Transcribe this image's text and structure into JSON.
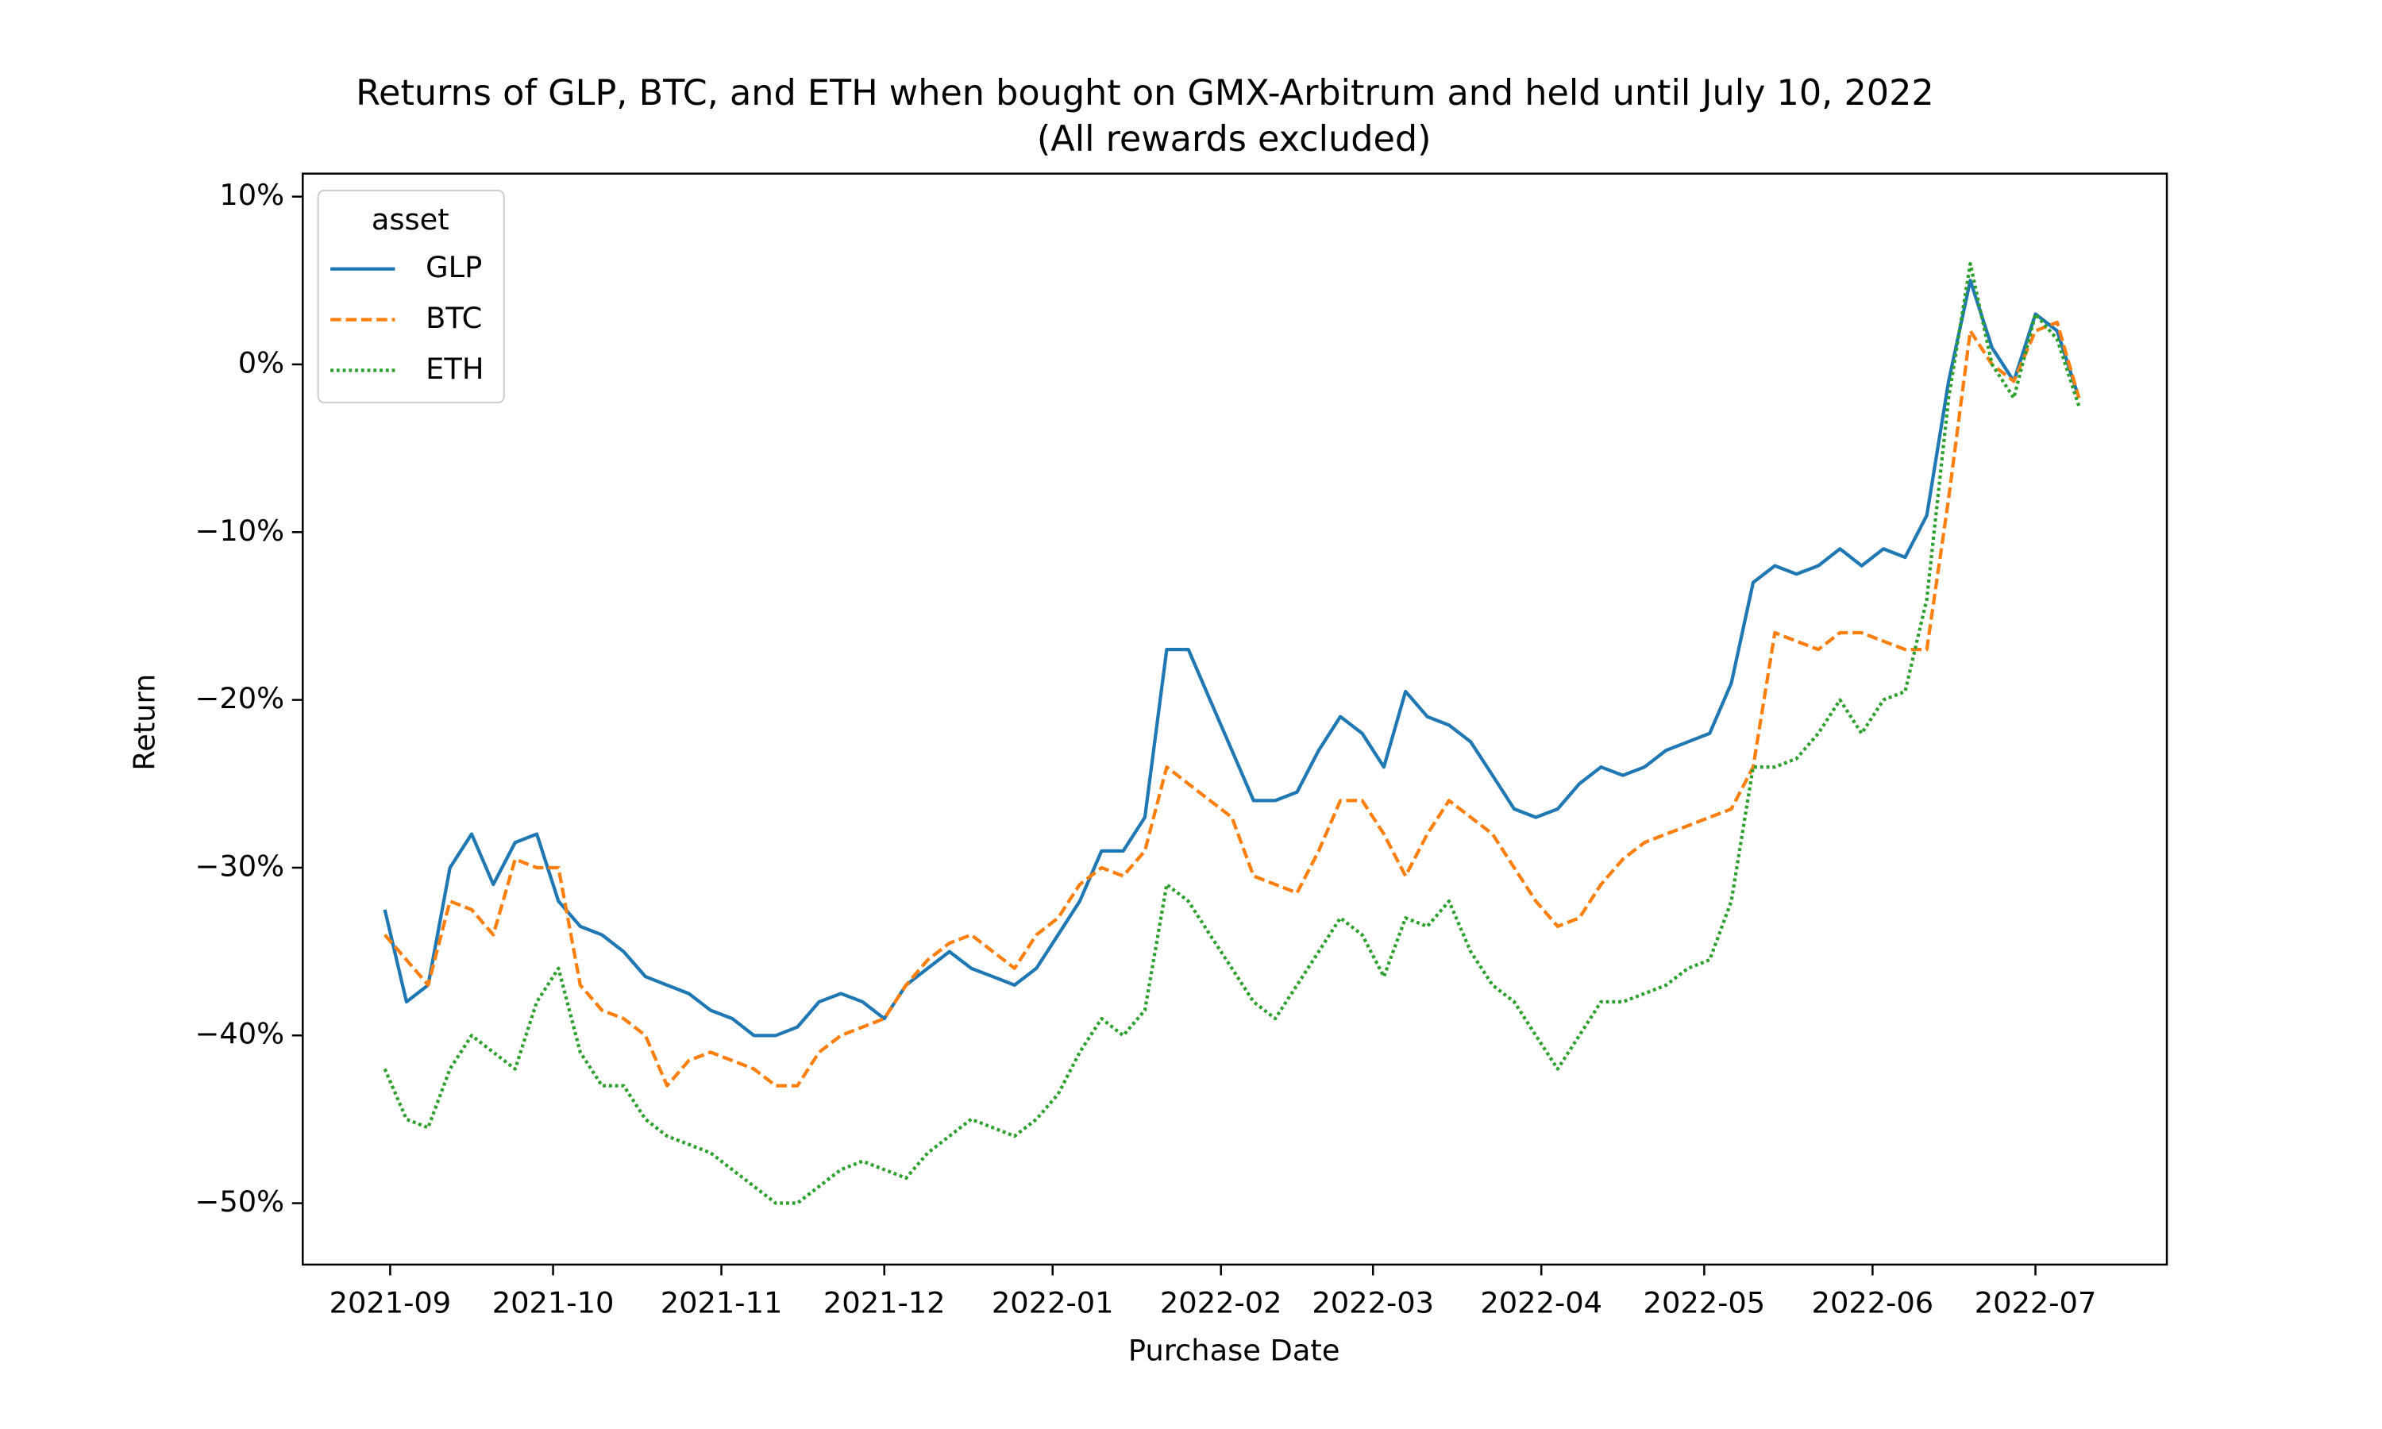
{
  "chart_data": {
    "type": "line",
    "title": "Returns of GLP, BTC, and ETH when bought on GMX-Arbitrum and held until July 10, 2022",
    "subtitle": "(All rewards excluded)",
    "xlabel": "Purchase Date",
    "ylabel": "Return",
    "legend_title": "asset",
    "legend_loc": "upper left",
    "x": [
      -1,
      3,
      7,
      11,
      15,
      19,
      23,
      27,
      31,
      35,
      39,
      43,
      47,
      51,
      55,
      59,
      63,
      67,
      71,
      75,
      79,
      83,
      87,
      91,
      95,
      99,
      103,
      107,
      111,
      115,
      119,
      123,
      127,
      131,
      135,
      139,
      143,
      147,
      151,
      155,
      159,
      163,
      167,
      171,
      175,
      179,
      183,
      187,
      191,
      195,
      199,
      203,
      207,
      211,
      215,
      219,
      223,
      227,
      231,
      235,
      239,
      243,
      247,
      251,
      255,
      259,
      263,
      267,
      271,
      275,
      279,
      283,
      287,
      291,
      295,
      299,
      303,
      307,
      311
    ],
    "xlim": [
      -16.1,
      327.2
    ],
    "xticks": [
      {
        "value": 0,
        "label": "2021-09"
      },
      {
        "value": 30,
        "label": "2021-10"
      },
      {
        "value": 61,
        "label": "2021-11"
      },
      {
        "value": 91,
        "label": "2021-12"
      },
      {
        "value": 122,
        "label": "2022-01"
      },
      {
        "value": 153,
        "label": "2022-02"
      },
      {
        "value": 181,
        "label": "2022-03"
      },
      {
        "value": 212,
        "label": "2022-04"
      },
      {
        "value": 242,
        "label": "2022-05"
      },
      {
        "value": 273,
        "label": "2022-06"
      },
      {
        "value": 303,
        "label": "2022-07"
      }
    ],
    "ylim": [
      -53.66,
      11.37
    ],
    "yticks": [
      {
        "value": 10,
        "label": "10%"
      },
      {
        "value": 0,
        "label": "0%"
      },
      {
        "value": -10,
        "label": "−10%"
      },
      {
        "value": -20,
        "label": "−20%"
      },
      {
        "value": -30,
        "label": "−30%"
      },
      {
        "value": -40,
        "label": "−40%"
      },
      {
        "value": -50,
        "label": "−50%"
      }
    ],
    "series": [
      {
        "name": "GLP",
        "color": "#1f77b4",
        "dash": "solid",
        "values": [
          -32.5,
          -38,
          -37,
          -30,
          -28,
          -31,
          -28.5,
          -28,
          -32,
          -33.5,
          -34,
          -35,
          -36.5,
          -37,
          -37.5,
          -38.5,
          -39,
          -40,
          -40,
          -39.5,
          -38,
          -37.5,
          -38,
          -39,
          -37,
          -36,
          -35,
          -36,
          -36.5,
          -37,
          -36,
          -34,
          -32,
          -29,
          -29,
          -27,
          -17,
          -17,
          -20,
          -23,
          -26,
          -26,
          -25.5,
          -23,
          -21,
          -22,
          -24,
          -19.5,
          -21,
          -21.5,
          -22.5,
          -24.5,
          -26.5,
          -27,
          -26.5,
          -25,
          -24,
          -24.5,
          -24,
          -23,
          -22.5,
          -22,
          -19,
          -13,
          -12,
          -12.5,
          -12,
          -11,
          -12,
          -11,
          -11.5,
          -9,
          -1,
          5,
          1,
          -1,
          3,
          2,
          -2
        ]
      },
      {
        "name": "BTC",
        "color": "#ff7f0e",
        "dash": "dashed",
        "values": [
          -34,
          -35.5,
          -37,
          -32,
          -32.5,
          -34,
          -29.5,
          -30,
          -30,
          -37,
          -38.5,
          -39,
          -40,
          -43,
          -41.5,
          -41,
          -41.5,
          -42,
          -43,
          -43,
          -41,
          -40,
          -39.5,
          -39,
          -37,
          -35.5,
          -34.5,
          -34,
          -35,
          -36,
          -34,
          -33,
          -31,
          -30,
          -30.5,
          -29,
          -24,
          -25,
          -26,
          -27,
          -30.5,
          -31,
          -31.5,
          -29,
          -26,
          -26,
          -28,
          -30.5,
          -28,
          -26,
          -27,
          -28,
          -30,
          -32,
          -33.5,
          -33,
          -31,
          -29.5,
          -28.5,
          -28,
          -27.5,
          -27,
          -26.5,
          -24,
          -16,
          -16.5,
          -17,
          -16,
          -16,
          -16.5,
          -17,
          -17,
          -8,
          2,
          0,
          -1,
          2,
          2.5,
          -2
        ]
      },
      {
        "name": "ETH",
        "color": "#2ca02c",
        "dash": "dotted",
        "values": [
          -42,
          -45,
          -45.5,
          -42,
          -40,
          -41,
          -42,
          -38,
          -36,
          -41,
          -43,
          -43,
          -45,
          -46,
          -46.5,
          -47,
          -48,
          -49,
          -50,
          -50,
          -49,
          -48,
          -47.5,
          -48,
          -48.5,
          -47,
          -46,
          -45,
          -45.5,
          -46,
          -45,
          -43.5,
          -41,
          -39,
          -40,
          -38.5,
          -31,
          -32,
          -34,
          -36,
          -38,
          -39,
          -37,
          -35,
          -33,
          -34,
          -36.5,
          -33,
          -33.5,
          -32,
          -35,
          -37,
          -38,
          -40,
          -42,
          -40,
          -38,
          -38,
          -37.5,
          -37,
          -36,
          -35.5,
          -32,
          -24,
          -24,
          -23.5,
          -22,
          -20,
          -22,
          -20,
          -19.5,
          -14,
          -2,
          6,
          0,
          -2,
          3,
          1.5,
          -2.5
        ]
      }
    ]
  }
}
